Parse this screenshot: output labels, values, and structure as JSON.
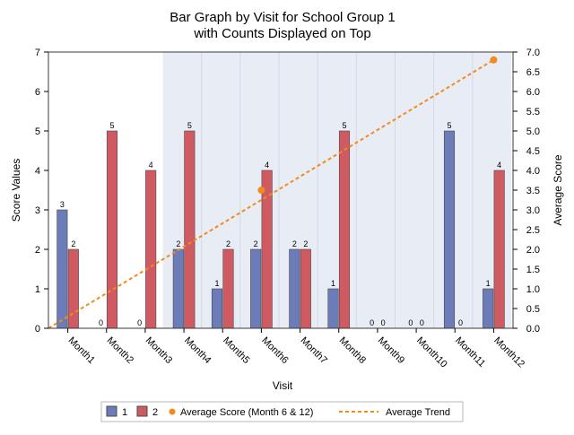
{
  "chart_data": {
    "type": "bar",
    "title": "Bar Graph by Visit for School Group 1",
    "subtitle": "with Counts Displayed on Top",
    "xlabel": "Visit",
    "ylabel": "Score Values",
    "y2label": "Average Score",
    "categories": [
      "Month1",
      "Month2",
      "Month3",
      "Month4",
      "Month5",
      "Month6",
      "Month7",
      "Month8",
      "Month9",
      "Month10",
      "Month11",
      "Month12"
    ],
    "ylim": [
      0,
      7
    ],
    "y2lim": [
      0,
      7
    ],
    "yticks": [
      "0",
      "1",
      "2",
      "3",
      "4",
      "5",
      "6",
      "7"
    ],
    "y2ticks": [
      "0.0",
      "0.5",
      "1.0",
      "1.5",
      "2.0",
      "2.5",
      "3.0",
      "3.5",
      "4.0",
      "4.5",
      "5.0",
      "5.5",
      "6.0",
      "6.5",
      "7.0"
    ],
    "shaded_range": [
      "Month4",
      "Month12"
    ],
    "series": [
      {
        "name": "1",
        "color": "#6b7cb8",
        "values": [
          3,
          0,
          0,
          2,
          1,
          2,
          2,
          1,
          0,
          0,
          5,
          1
        ]
      },
      {
        "name": "2",
        "color": "#d05a62",
        "values": [
          2,
          5,
          4,
          5,
          2,
          4,
          2,
          5,
          0,
          0,
          0,
          4
        ]
      }
    ],
    "average_score": {
      "name": "Average Score (Month 6 & 12)",
      "color": "#f28a1e",
      "points": [
        {
          "x": "Month6",
          "y": 3.5
        },
        {
          "x": "Month12",
          "y": 6.8
        }
      ]
    },
    "average_trend": {
      "name": "Average Trend",
      "color": "#f28a1e",
      "points": [
        {
          "x": "Month1",
          "y": 0
        },
        {
          "x": "Month12",
          "y": 6.8
        }
      ]
    },
    "legend": {
      "position": "bottom",
      "labels": [
        "1",
        "2",
        "Average Score (Month 6 & 12)",
        "Average Trend"
      ]
    }
  }
}
